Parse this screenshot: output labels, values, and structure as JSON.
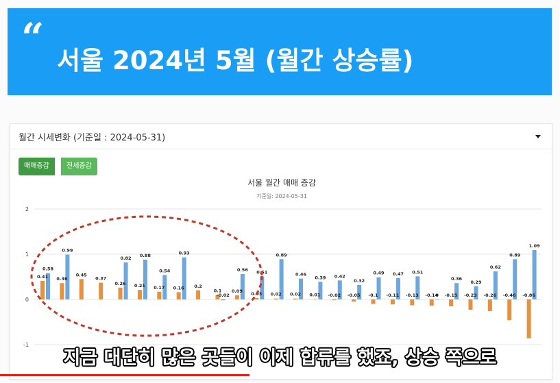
{
  "banner": {
    "quote_glyph": "“",
    "title": "서울 2024년 5월 (월간 상승률)"
  },
  "card": {
    "title": "월간 시세변화 (기준일 : 2024-05-31)"
  },
  "tabs": [
    {
      "label": "매매증감",
      "active": true
    },
    {
      "label": "전세증감",
      "active": false
    }
  ],
  "chart_data": {
    "type": "bar",
    "title": "서울 월간 매매 증감",
    "subtitle": "기준일: 2024-05-31",
    "ylim": [
      -1,
      2
    ],
    "yticks": [
      "2",
      "1",
      "0",
      "-1"
    ],
    "grid": true,
    "colors": {
      "series1": "#e6913f",
      "series2": "#6ea6de"
    },
    "pairs": [
      [
        0.41,
        0.58
      ],
      [
        0.36,
        0.99
      ],
      [
        0.45,
        null
      ],
      [
        0.37,
        null
      ],
      [
        0.26,
        0.82
      ],
      [
        0.21,
        0.88
      ],
      [
        0.17,
        0.54
      ],
      [
        0.16,
        0.93
      ],
      [
        0.2,
        null
      ],
      [
        0.1,
        -0.02
      ],
      [
        0.09,
        0.56
      ],
      [
        0.03,
        0.51
      ],
      [
        0.02,
        0.89
      ],
      [
        0.02,
        0.46
      ],
      [
        0.01,
        0.39
      ],
      [
        -0.02,
        0.42
      ],
      [
        -0.05,
        0.32
      ],
      [
        -0.1,
        0.49
      ],
      [
        -0.11,
        0.47
      ],
      [
        -0.13,
        0.51
      ],
      [
        -0.14,
        0
      ],
      [
        -0.15,
        0.36
      ],
      [
        -0.23,
        0.29
      ],
      [
        -0.26,
        0.62
      ],
      [
        -0.46,
        0.89
      ],
      [
        -0.86,
        1.09
      ]
    ]
  },
  "annotation": {
    "stroke_color": "#c0392b"
  },
  "subtitle": {
    "text": "지금 대단히 많은 곳들이 이제 합류를 했죠, 상승 쪽으로"
  },
  "video": {
    "progress_fraction": 0.445
  }
}
